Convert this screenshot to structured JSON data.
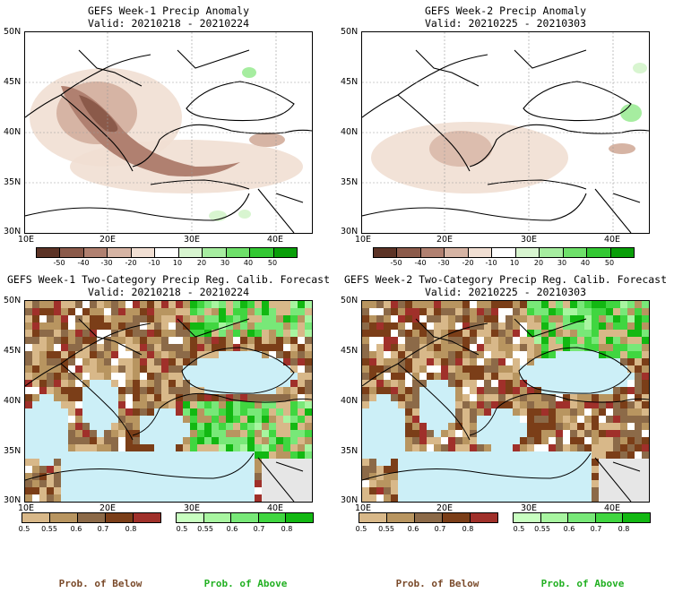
{
  "panels": [
    {
      "title": "GEFS Week-1 Precip Anomaly",
      "valid": "Valid: 20210218 - 20210224",
      "kind": "anomaly",
      "x_ticks": [
        "10E",
        "20E",
        "30E",
        "40E"
      ],
      "y_ticks": [
        "50N",
        "45N",
        "40N",
        "35N",
        "30N"
      ],
      "colorbar_ticks": [
        "-50",
        "-40",
        "-30",
        "-20",
        "-10",
        "10",
        "20",
        "30",
        "40",
        "50"
      ]
    },
    {
      "title": "GEFS Week-2 Precip Anomaly",
      "valid": "Valid: 20210225 - 20210303",
      "kind": "anomaly",
      "x_ticks": [
        "10E",
        "20E",
        "30E",
        "40E"
      ],
      "y_ticks": [
        "50N",
        "45N",
        "40N",
        "35N",
        "30N"
      ],
      "colorbar_ticks": [
        "-50",
        "-40",
        "-30",
        "-20",
        "-10",
        "10",
        "20",
        "30",
        "40",
        "50"
      ]
    },
    {
      "title": "GEFS Week-1 Two-Category Precip Reg. Calib. Forecast",
      "valid": "Valid: 20210218 - 20210224",
      "kind": "probability",
      "x_ticks": [
        "10E",
        "20E",
        "30E",
        "40E"
      ],
      "y_ticks": [
        "50N",
        "45N",
        "40N",
        "35N",
        "30N"
      ],
      "below_ticks": [
        "0.5",
        "0.55",
        "0.6",
        "0.7",
        "0.8"
      ],
      "above_ticks": [
        "0.5",
        "0.55",
        "0.6",
        "0.7",
        "0.8"
      ]
    },
    {
      "title": "GEFS Week-2 Two-Category Precip Reg. Calib. Forecast",
      "valid": "Valid: 20210225 - 20210303",
      "kind": "probability",
      "x_ticks": [
        "10E",
        "20E",
        "30E",
        "40E"
      ],
      "y_ticks": [
        "50N",
        "45N",
        "40N",
        "35N",
        "30N"
      ],
      "below_ticks": [
        "0.5",
        "0.55",
        "0.6",
        "0.7",
        "0.8"
      ],
      "above_ticks": [
        "0.5",
        "0.55",
        "0.6",
        "0.7",
        "0.8"
      ]
    }
  ],
  "footer": {
    "below_label": "Prob. of Below",
    "above_label": "Prob. of Above"
  },
  "colors": {
    "anomaly_scale": [
      "#5c3326",
      "#8b5a4a",
      "#b08070",
      "#d6b4a4",
      "#f1dfd3",
      "#ffffff",
      "#d8f5d0",
      "#a6eda0",
      "#6ee06a",
      "#33c833",
      "#089e08"
    ],
    "below_scale": [
      "#d8b889",
      "#b89560",
      "#8c6a48",
      "#7b3e18",
      "#a0302a"
    ],
    "above_scale": [
      "#c8ffc0",
      "#a8f5a0",
      "#78e878",
      "#40d640",
      "#12b812"
    ],
    "ocean": "#cceff7",
    "no_data": "#e6e6e6",
    "below_label_color": "#7a4a2a",
    "above_label_color": "#22b022"
  }
}
